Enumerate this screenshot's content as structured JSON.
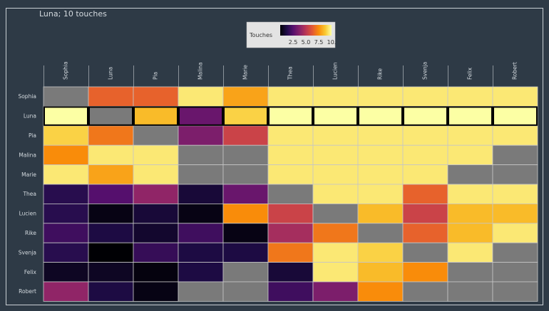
{
  "chart_data": {
    "type": "heatmap",
    "title": "Luna; 10 touches",
    "rows": [
      "Sophia",
      "Luna",
      "Pia",
      "Malina",
      "Marie",
      "Thea",
      "Lucien",
      "Rike",
      "Svenja",
      "Felix",
      "Robert"
    ],
    "columns": [
      "Sophia",
      "Luna",
      "Pia",
      "Malina",
      "Marie",
      "Thea",
      "Lucien",
      "Rike",
      "Svenja",
      "Felix",
      "Robert"
    ],
    "highlight_row": "Luna",
    "values": [
      [
        null,
        6.5,
        6.5,
        9.5,
        8.0,
        9.5,
        9.5,
        9.5,
        9.5,
        9.5,
        9.5
      ],
      [
        10.0,
        null,
        8.5,
        3.0,
        9.0,
        10.0,
        10.0,
        10.0,
        10.0,
        10.0,
        10.0
      ],
      [
        9.0,
        7.0,
        null,
        3.5,
        5.5,
        9.5,
        9.5,
        9.5,
        9.5,
        9.5,
        9.5
      ],
      [
        7.5,
        9.5,
        9.5,
        null,
        null,
        9.5,
        9.5,
        9.5,
        9.5,
        9.5,
        null
      ],
      [
        9.5,
        8.0,
        9.5,
        null,
        null,
        9.5,
        9.5,
        9.5,
        9.5,
        null,
        null
      ],
      [
        1.5,
        2.5,
        4.0,
        1.0,
        3.0,
        null,
        9.5,
        9.5,
        6.5,
        9.5,
        9.5
      ],
      [
        1.5,
        0.3,
        1.0,
        0.3,
        7.5,
        5.5,
        null,
        8.5,
        5.5,
        8.5,
        8.5
      ],
      [
        2.0,
        1.2,
        0.8,
        2.0,
        0.3,
        4.5,
        7.0,
        null,
        6.5,
        8.5,
        9.5
      ],
      [
        1.5,
        0.0,
        1.8,
        1.2,
        1.2,
        7.0,
        9.5,
        9.0,
        null,
        9.5,
        null
      ],
      [
        0.6,
        0.6,
        0.2,
        1.2,
        null,
        1.0,
        9.5,
        8.5,
        7.5,
        null,
        null
      ],
      [
        4.0,
        1.2,
        0.3,
        null,
        null,
        2.0,
        3.5,
        7.5,
        null,
        null,
        null
      ]
    ],
    "colorbar": {
      "label": "Touches",
      "range": [
        0,
        10
      ],
      "ticks": [
        "2.5",
        "5.0",
        "7.5",
        "10."
      ]
    }
  }
}
